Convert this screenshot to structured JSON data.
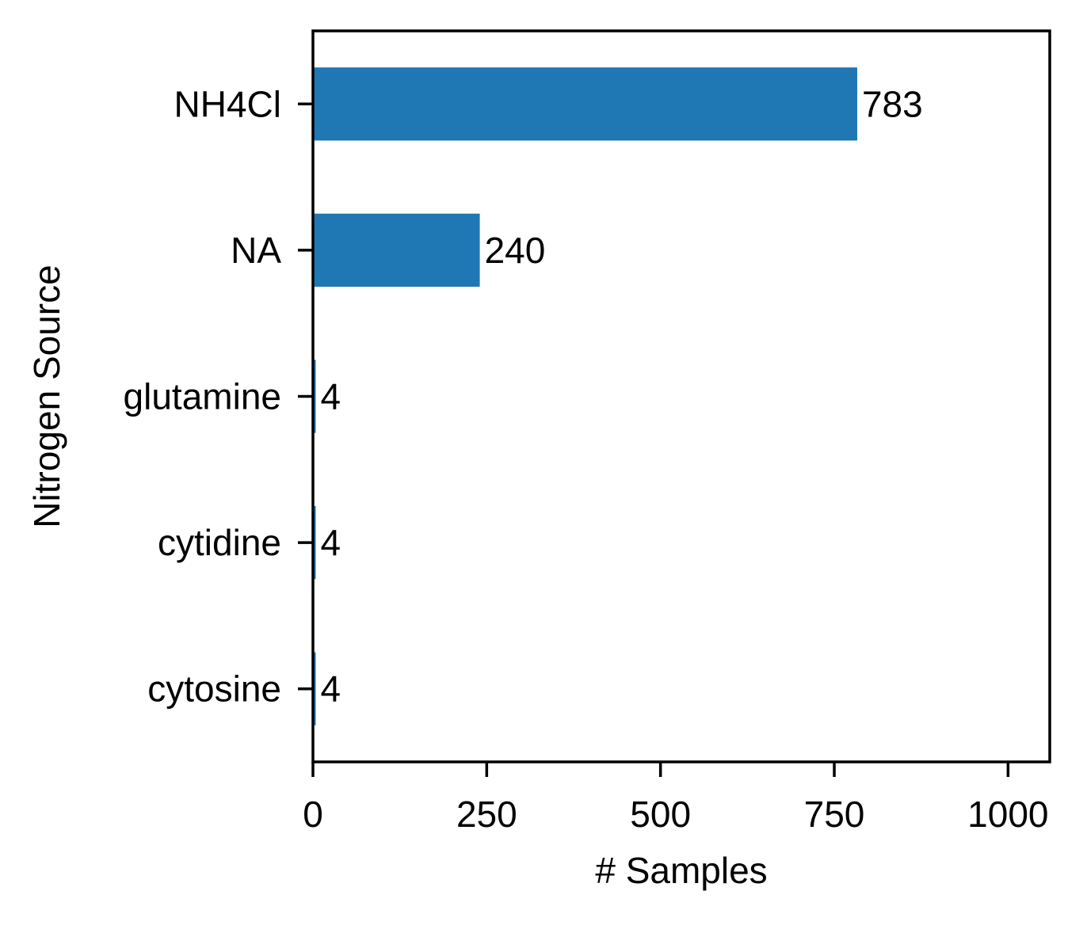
{
  "chart_data": {
    "type": "bar",
    "orientation": "horizontal",
    "title": "",
    "xlabel": "# Samples",
    "ylabel": "Nitrogen Source",
    "categories": [
      "NH4Cl",
      "NA",
      "glutamine",
      "cytidine",
      "cytosine"
    ],
    "values": [
      783,
      240,
      4,
      4,
      4
    ],
    "data_labels": [
      "783",
      "240",
      "4",
      "4",
      "4"
    ],
    "xlim": [
      0,
      1060
    ],
    "xticks": [
      0,
      250,
      500,
      750,
      1000
    ],
    "xtick_labels": [
      "0",
      "250",
      "500",
      "750",
      "1000"
    ],
    "grid": false,
    "legend": "none",
    "colors": {
      "bar": "#1f77b4",
      "axis": "#000000",
      "text": "#000000",
      "background": "#ffffff"
    }
  }
}
